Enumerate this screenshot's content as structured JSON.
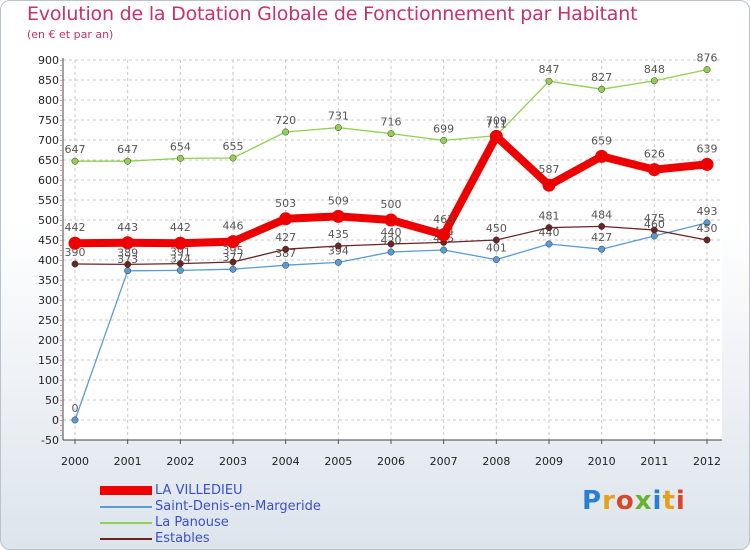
{
  "brand": {
    "name": "Proxiti",
    "letters": [
      "P",
      "r",
      "o",
      "x",
      "i",
      "t",
      "i"
    ]
  },
  "chart_data": {
    "type": "line",
    "title": "Evolution de la Dotation Globale de Fonctionnement par Habitant",
    "subtitle": "(en € et par an)",
    "xlabel": "",
    "ylabel": "",
    "ylim": [
      -50,
      900
    ],
    "ytick_step": 50,
    "grid": true,
    "legend_position": "bottom-left",
    "categories": [
      "2000",
      "2001",
      "2002",
      "2003",
      "2004",
      "2005",
      "2006",
      "2007",
      "2008",
      "2009",
      "2010",
      "2011",
      "2012"
    ],
    "series": [
      {
        "name": "LA VILLEDIEU",
        "color": "#ee0000",
        "values": [
          442,
          443,
          442,
          446,
          503,
          509,
          500,
          463,
          709,
          587,
          659,
          626,
          639
        ]
      },
      {
        "name": "Saint-Denis-en-Margeride",
        "color": "#5b9bd5",
        "values": [
          0,
          373,
          374,
          377,
          387,
          394,
          420,
          425,
          401,
          440,
          427,
          460,
          493
        ]
      },
      {
        "name": "La Panouse",
        "color": "#92d050",
        "values": [
          647,
          647,
          654,
          655,
          720,
          731,
          716,
          699,
          711,
          847,
          827,
          848,
          876
        ]
      },
      {
        "name": "Estables",
        "color": "#6b2424",
        "values": [
          390,
          389,
          391,
          395,
          427,
          435,
          440,
          444,
          450,
          481,
          484,
          475,
          450
        ]
      }
    ]
  }
}
